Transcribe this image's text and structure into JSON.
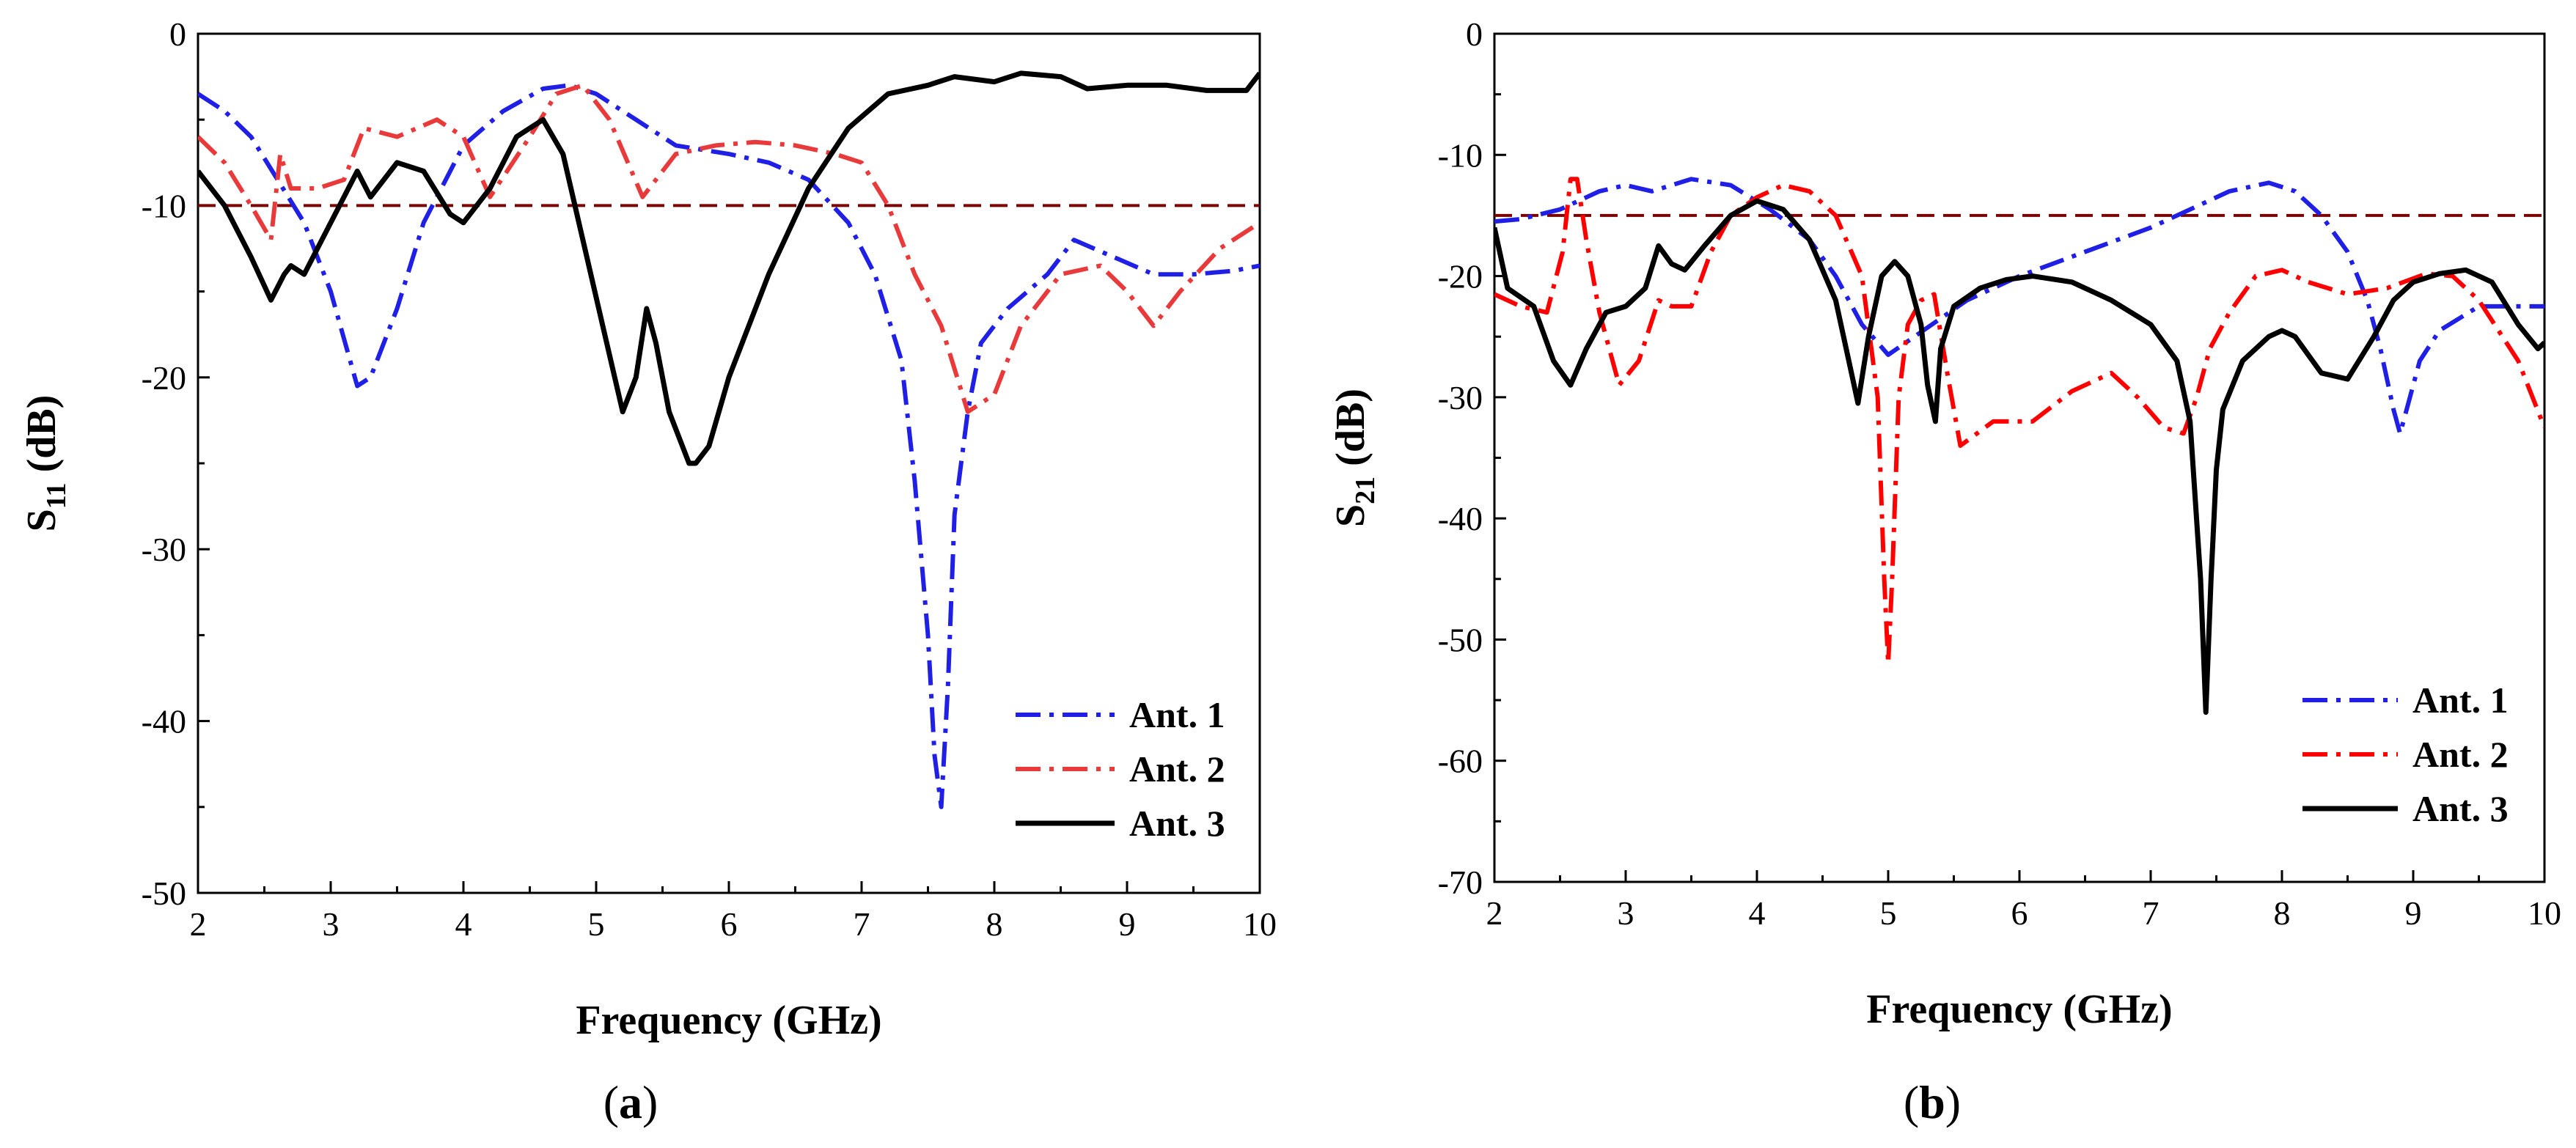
{
  "colors": {
    "ant1": "#1f1fe6",
    "ant2": "#e83a3a",
    "ant2b": "#ff0000",
    "ant3": "#000000",
    "threshold": "#7a0000"
  },
  "chart_data": [
    {
      "type": "line",
      "panel_label": "a",
      "xlabel": "Frequency (GHz)",
      "ylabel": {
        "base": "S",
        "sub": "11",
        "unit": " (dB)"
      },
      "xlim": [
        2,
        10
      ],
      "ylim": [
        -50,
        0
      ],
      "xticks": [
        2,
        3,
        4,
        5,
        6,
        7,
        8,
        9,
        10
      ],
      "yticks": [
        0,
        -10,
        -20,
        -30,
        -40,
        -50
      ],
      "threshold": -10,
      "legend_position": "bottom-right",
      "series": [
        {
          "name": "Ant. 1",
          "style": "dash-dot",
          "color": "ant1",
          "x": [
            2.0,
            2.2,
            2.4,
            2.6,
            2.8,
            3.0,
            3.2,
            3.3,
            3.5,
            3.7,
            4.0,
            4.3,
            4.6,
            4.8,
            5.0,
            5.3,
            5.6,
            6.0,
            6.3,
            6.6,
            6.9,
            7.1,
            7.3,
            7.4,
            7.5,
            7.55,
            7.6,
            7.65,
            7.7,
            7.8,
            7.9,
            8.1,
            8.4,
            8.6,
            8.9,
            9.2,
            9.5,
            9.8,
            10.0
          ],
          "y": [
            -3.5,
            -4.5,
            -6,
            -8.5,
            -11,
            -15,
            -20.5,
            -20,
            -16,
            -11,
            -6.5,
            -4.5,
            -3.2,
            -3.0,
            -3.5,
            -5,
            -6.5,
            -7,
            -7.5,
            -8.5,
            -11,
            -14,
            -19,
            -26,
            -35,
            -42,
            -45,
            -38,
            -28,
            -22,
            -18,
            -16,
            -14,
            -12,
            -13,
            -14,
            -14,
            -13.8,
            -13.5
          ]
        },
        {
          "name": "Ant. 2",
          "style": "dash-dot",
          "color": "ant2",
          "x": [
            2.0,
            2.2,
            2.4,
            2.55,
            2.62,
            2.7,
            2.9,
            3.1,
            3.25,
            3.5,
            3.8,
            4.0,
            4.2,
            4.5,
            4.7,
            4.9,
            5.1,
            5.35,
            5.6,
            5.9,
            6.2,
            6.5,
            6.8,
            7.0,
            7.2,
            7.4,
            7.6,
            7.8,
            8.0,
            8.2,
            8.5,
            8.8,
            9.0,
            9.2,
            9.4,
            9.7,
            10.0
          ],
          "y": [
            -6,
            -7.5,
            -10,
            -12,
            -7,
            -9,
            -9,
            -8.5,
            -5.5,
            -6,
            -5,
            -6,
            -9.5,
            -6,
            -3.5,
            -3.0,
            -5,
            -9.5,
            -7,
            -6.5,
            -6.3,
            -6.5,
            -7,
            -7.5,
            -10,
            -14,
            -17,
            -22,
            -21,
            -17,
            -14,
            -13.5,
            -15,
            -17,
            -15,
            -12.5,
            -11
          ]
        },
        {
          "name": "Ant. 3",
          "style": "solid",
          "color": "ant3",
          "x": [
            2.0,
            2.2,
            2.4,
            2.55,
            2.65,
            2.7,
            2.8,
            3.0,
            3.2,
            3.3,
            3.5,
            3.7,
            3.9,
            4.0,
            4.2,
            4.4,
            4.6,
            4.75,
            4.9,
            5.05,
            5.2,
            5.3,
            5.38,
            5.45,
            5.55,
            5.7,
            5.75,
            5.85,
            6.0,
            6.3,
            6.6,
            6.9,
            7.2,
            7.5,
            7.7,
            8.0,
            8.2,
            8.5,
            8.7,
            9.0,
            9.3,
            9.6,
            9.9,
            10.0
          ],
          "y": [
            -8,
            -10,
            -13,
            -15.5,
            -14,
            -13.5,
            -14,
            -11,
            -8,
            -9.5,
            -7.5,
            -8,
            -10.5,
            -11,
            -9,
            -6,
            -5,
            -7,
            -12,
            -17,
            -22,
            -20,
            -16,
            -18,
            -22,
            -25,
            -25,
            -24,
            -20,
            -14,
            -9,
            -5.5,
            -3.5,
            -3,
            -2.5,
            -2.8,
            -2.3,
            -2.5,
            -3.2,
            -3.0,
            -3.0,
            -3.3,
            -3.3,
            -2.3
          ]
        }
      ]
    },
    {
      "type": "line",
      "panel_label": "b",
      "xlabel": "Frequency (GHz)",
      "ylabel": {
        "base": "S",
        "sub": "21",
        "unit": " (dB)"
      },
      "xlim": [
        2,
        10
      ],
      "ylim": [
        -70,
        0
      ],
      "xticks": [
        2,
        3,
        4,
        5,
        6,
        7,
        8,
        9,
        10
      ],
      "yticks": [
        0,
        -10,
        -20,
        -30,
        -40,
        -50,
        -60,
        -70
      ],
      "threshold": -15,
      "legend_position": "bottom-right",
      "series": [
        {
          "name": "Ant. 1",
          "style": "dash-dot",
          "color": "ant1",
          "x": [
            2.0,
            2.2,
            2.5,
            2.8,
            3.0,
            3.2,
            3.5,
            3.8,
            4.1,
            4.4,
            4.6,
            4.8,
            5.0,
            5.2,
            5.4,
            5.6,
            6.0,
            6.5,
            7.0,
            7.3,
            7.6,
            7.9,
            8.1,
            8.3,
            8.5,
            8.65,
            8.75,
            8.85,
            8.9,
            8.95,
            9.05,
            9.2,
            9.5,
            9.8,
            10.0
          ],
          "y": [
            -15.5,
            -15.3,
            -14.5,
            -13,
            -12.5,
            -13,
            -12,
            -12.5,
            -14.5,
            -17,
            -20,
            -24,
            -26.5,
            -25,
            -23.5,
            -22,
            -20,
            -18,
            -16,
            -14.5,
            -13,
            -12.3,
            -13,
            -15,
            -18,
            -22,
            -26,
            -31,
            -33,
            -31,
            -27,
            -24.5,
            -22.5,
            -22.5,
            -22.5
          ]
        },
        {
          "name": "Ant. 2",
          "style": "dash-dot",
          "color": "ant2b",
          "x": [
            2.0,
            2.2,
            2.4,
            2.52,
            2.58,
            2.63,
            2.7,
            2.8,
            2.95,
            3.1,
            3.25,
            3.35,
            3.5,
            3.65,
            3.8,
            4.0,
            4.2,
            4.4,
            4.6,
            4.8,
            4.92,
            4.97,
            5.0,
            5.03,
            5.08,
            5.15,
            5.25,
            5.35,
            5.45,
            5.55,
            5.8,
            6.1,
            6.4,
            6.7,
            6.9,
            7.1,
            7.25,
            7.35,
            7.45,
            7.6,
            7.8,
            8.0,
            8.2,
            8.5,
            8.8,
            9.1,
            9.3,
            9.5,
            9.8,
            10.0
          ],
          "y": [
            -21.5,
            -22.5,
            -23,
            -18,
            -12,
            -12,
            -17,
            -23,
            -29,
            -27,
            -22,
            -22.5,
            -22.5,
            -18,
            -15,
            -13.5,
            -12.5,
            -13,
            -15,
            -20,
            -30,
            -45,
            -52,
            -45,
            -30,
            -24,
            -22,
            -21.5,
            -28,
            -34,
            -32,
            -32,
            -29.5,
            -28,
            -30,
            -32.5,
            -33,
            -30,
            -26,
            -23,
            -20,
            -19.5,
            -20.5,
            -21.5,
            -21,
            -19.8,
            -20,
            -22,
            -27,
            -32.5
          ]
        },
        {
          "name": "Ant. 3",
          "style": "solid",
          "color": "ant3",
          "x": [
            2.0,
            2.1,
            2.3,
            2.45,
            2.58,
            2.7,
            2.85,
            3.0,
            3.15,
            3.25,
            3.35,
            3.45,
            3.6,
            3.8,
            4.0,
            4.2,
            4.4,
            4.6,
            4.72,
            4.77,
            4.85,
            4.95,
            5.05,
            5.15,
            5.25,
            5.3,
            5.36,
            5.4,
            5.5,
            5.7,
            5.9,
            6.1,
            6.4,
            6.7,
            7.0,
            7.2,
            7.3,
            7.38,
            7.42,
            7.46,
            7.5,
            7.55,
            7.7,
            7.9,
            8.0,
            8.1,
            8.3,
            8.5,
            8.7,
            8.85,
            9.0,
            9.2,
            9.4,
            9.6,
            9.8,
            9.95,
            10.0
          ],
          "y": [
            -16,
            -21,
            -22.5,
            -27,
            -29,
            -26,
            -23,
            -22.5,
            -21,
            -17.5,
            -19,
            -19.5,
            -17.5,
            -15,
            -13.8,
            -14.5,
            -17,
            -22,
            -28,
            -30.5,
            -25,
            -20,
            -18.8,
            -20,
            -24,
            -29,
            -32,
            -26,
            -22.5,
            -21,
            -20.3,
            -20,
            -20.5,
            -22,
            -24,
            -27,
            -32,
            -45,
            -56,
            -45,
            -36,
            -31,
            -27,
            -25,
            -24.5,
            -25,
            -28,
            -28.5,
            -25,
            -22,
            -20.5,
            -19.8,
            -19.5,
            -20.5,
            -24,
            -26,
            -25.5
          ]
        }
      ]
    }
  ]
}
